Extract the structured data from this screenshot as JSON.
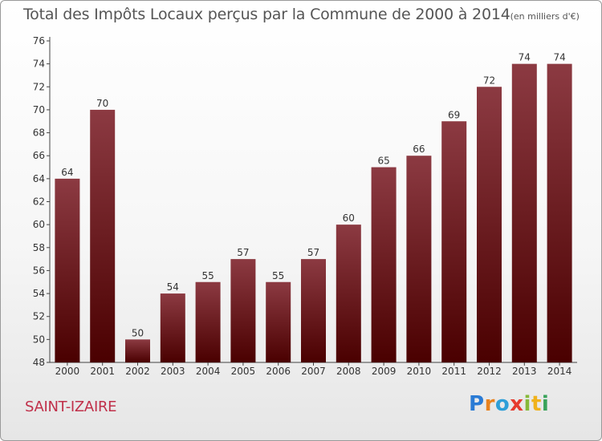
{
  "chart_data": {
    "type": "bar",
    "title": "Total des Impôts Locaux perçus par la Commune de 2000 à 2014",
    "subtitle": "(en milliers d'€)",
    "categories": [
      "2000",
      "2001",
      "2002",
      "2003",
      "2004",
      "2005",
      "2006",
      "2007",
      "2008",
      "2009",
      "2010",
      "2011",
      "2012",
      "2013",
      "2014"
    ],
    "values": [
      64,
      70,
      50,
      54,
      55,
      57,
      55,
      57,
      60,
      65,
      66,
      69,
      72,
      74,
      74
    ],
    "ylim": [
      48,
      76
    ],
    "yticks": [
      48,
      50,
      52,
      54,
      56,
      58,
      60,
      62,
      64,
      66,
      68,
      70,
      72,
      74,
      76
    ],
    "xlabel": "",
    "ylabel": "",
    "grid": false,
    "bar_color_top": "#8c3a42",
    "bar_color_bottom": "#4a0000"
  },
  "footer": {
    "commune": "SAINT-IZAIRE",
    "logo": {
      "p": "P",
      "r": "r",
      "o": "o",
      "x": "x",
      "i1": "i",
      "t": "t",
      "i2": "i"
    }
  }
}
